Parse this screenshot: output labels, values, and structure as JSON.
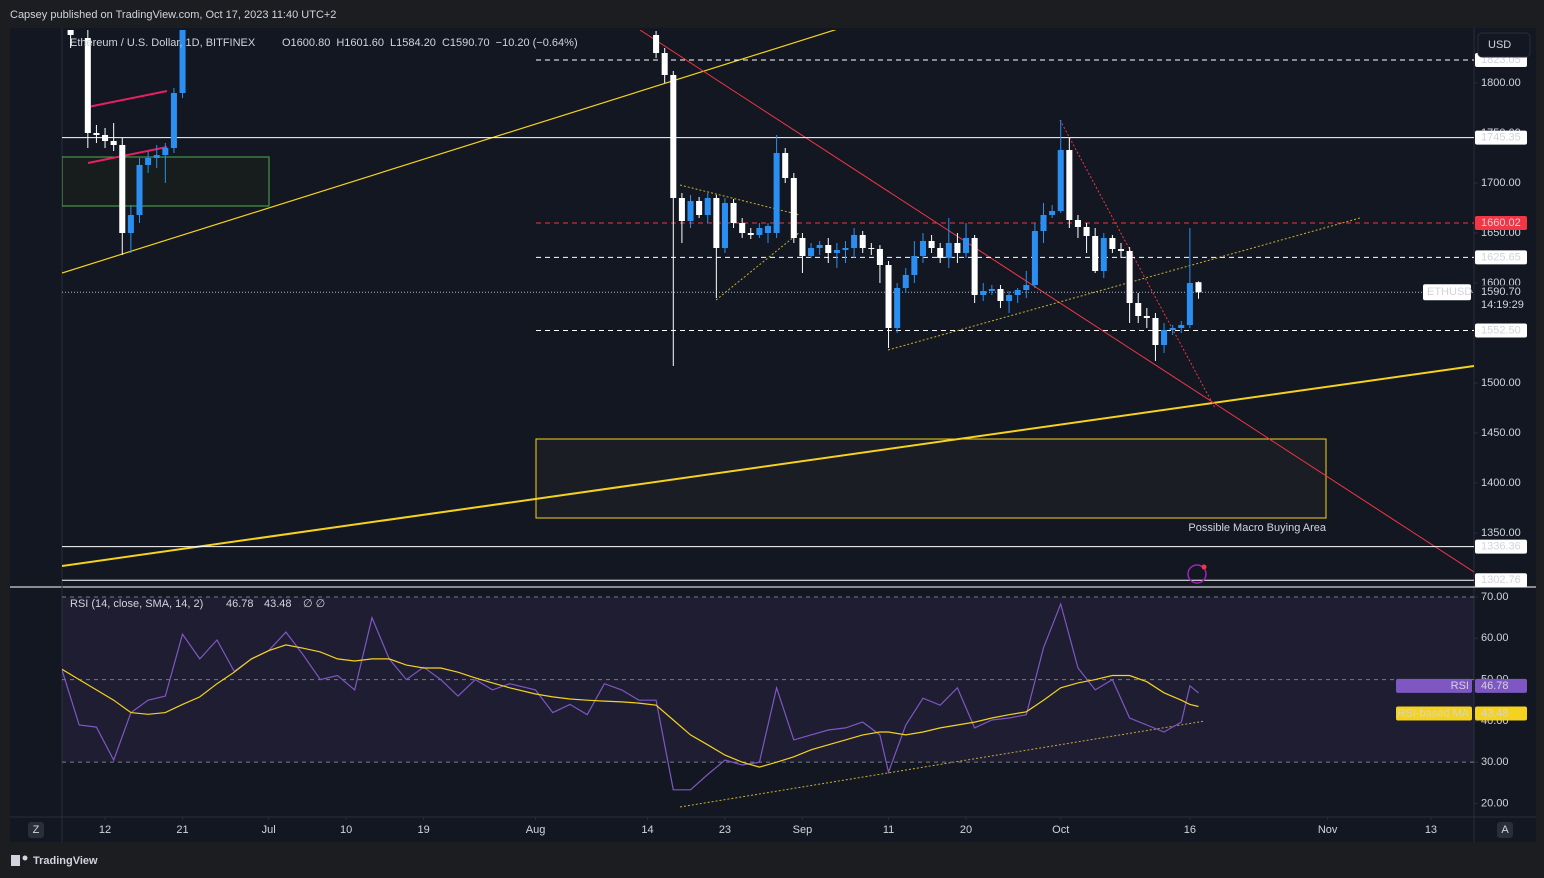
{
  "header": {
    "publisher": "Capsey published on TradingView.com, Oct 17, 2023 11:40 UTC+2"
  },
  "chart_data": [
    {
      "type": "candlestick",
      "title": "Ethereum / U.S. Dollar, 1D, BITFINEX",
      "ohlc_legend": [
        "O1600.80",
        "H1601.60",
        "L1584.20",
        "C1590.70",
        "−10.20 (−0.64%)"
      ],
      "currency": "USD",
      "symbol": "ETHUSD",
      "countdown": "14:19:29",
      "up_color": "#2a8ff0",
      "down_color": "#ffffff",
      "x": [
        "2023-06-08",
        "2023-06-10",
        "2023-06-11",
        "2023-06-12",
        "2023-06-13",
        "2023-06-14",
        "2023-06-15",
        "2023-06-16",
        "2023-06-17",
        "2023-06-18",
        "2023-06-19",
        "2023-06-20",
        "2023-06-21",
        "2023-08-15",
        "2023-08-16",
        "2023-08-17",
        "2023-08-18",
        "2023-08-19",
        "2023-08-20",
        "2023-08-21",
        "2023-08-22",
        "2023-08-23",
        "2023-08-24",
        "2023-08-25",
        "2023-08-26",
        "2023-08-27",
        "2023-08-28",
        "2023-08-29",
        "2023-08-30",
        "2023-08-31",
        "2023-09-01",
        "2023-09-02",
        "2023-09-03",
        "2023-09-04",
        "2023-09-05",
        "2023-09-06",
        "2023-09-07",
        "2023-09-08",
        "2023-09-09",
        "2023-09-10",
        "2023-09-11",
        "2023-09-12",
        "2023-09-13",
        "2023-09-14",
        "2023-09-15",
        "2023-09-16",
        "2023-09-17",
        "2023-09-18",
        "2023-09-19",
        "2023-09-20",
        "2023-09-21",
        "2023-09-22",
        "2023-09-23",
        "2023-09-24",
        "2023-09-25",
        "2023-09-26",
        "2023-09-27",
        "2023-09-28",
        "2023-09-29",
        "2023-09-30",
        "2023-10-01",
        "2023-10-02",
        "2023-10-03",
        "2023-10-04",
        "2023-10-05",
        "2023-10-06",
        "2023-10-07",
        "2023-10-08",
        "2023-10-09",
        "2023-10-10",
        "2023-10-11",
        "2023-10-12",
        "2023-10-13",
        "2023-10-14",
        "2023-10-15",
        "2023-10-16",
        "2023-10-17"
      ],
      "open": [
        1870,
        1845,
        1750,
        1748,
        1742,
        1738,
        1650,
        1668,
        1718,
        1725,
        1728,
        1735,
        1790,
        1848,
        1830,
        1808,
        1685,
        1662,
        1682,
        1668,
        1685,
        1635,
        1680,
        1660,
        1650,
        1648,
        1650,
        1650,
        1730,
        1705,
        1645,
        1627,
        1635,
        1638,
        1630,
        1633,
        1635,
        1648,
        1635,
        1634,
        1618,
        1555,
        1595,
        1608,
        1627,
        1642,
        1635,
        1625,
        1640,
        1630,
        1645,
        1588,
        1592,
        1594,
        1582,
        1588,
        1593,
        1598,
        1652,
        1668,
        1672,
        1733,
        1663,
        1656,
        1647,
        1612,
        1645,
        1634,
        1632,
        1580,
        1567,
        1565,
        1538,
        1553,
        1555,
        1558,
        1600.8
      ],
      "high": [
        1880,
        1855,
        1758,
        1755,
        1760,
        1745,
        1678,
        1725,
        1732,
        1738,
        1740,
        1795,
        1900,
        1852,
        1835,
        1812,
        1690,
        1688,
        1686,
        1690,
        1688,
        1685,
        1684,
        1665,
        1655,
        1660,
        1660,
        1748,
        1735,
        1710,
        1650,
        1640,
        1642,
        1645,
        1640,
        1642,
        1655,
        1652,
        1640,
        1638,
        1622,
        1600,
        1615,
        1642,
        1650,
        1648,
        1640,
        1665,
        1650,
        1660,
        1648,
        1600,
        1598,
        1598,
        1592,
        1595,
        1612,
        1660,
        1680,
        1678,
        1763,
        1745,
        1668,
        1660,
        1655,
        1650,
        1648,
        1640,
        1636,
        1590,
        1575,
        1570,
        1560,
        1558,
        1562,
        1655,
        1601.6
      ],
      "low": [
        1835,
        1735,
        1740,
        1735,
        1732,
        1628,
        1630,
        1660,
        1710,
        1715,
        1700,
        1730,
        1785,
        1825,
        1800,
        1517,
        1640,
        1655,
        1665,
        1660,
        1585,
        1630,
        1655,
        1645,
        1644,
        1645,
        1640,
        1645,
        1700,
        1640,
        1610,
        1625,
        1628,
        1620,
        1615,
        1620,
        1625,
        1630,
        1628,
        1600,
        1535,
        1550,
        1590,
        1600,
        1620,
        1630,
        1620,
        1615,
        1620,
        1625,
        1580,
        1582,
        1588,
        1575,
        1570,
        1580,
        1585,
        1595,
        1640,
        1665,
        1670,
        1655,
        1645,
        1630,
        1610,
        1605,
        1630,
        1625,
        1560,
        1560,
        1555,
        1522,
        1530,
        1548,
        1550,
        1555,
        1584.2
      ],
      "close": [
        1848,
        1750,
        1748,
        1742,
        1738,
        1650,
        1668,
        1718,
        1725,
        1728,
        1735,
        1790,
        1890,
        1830,
        1808,
        1685,
        1662,
        1682,
        1668,
        1685,
        1635,
        1680,
        1660,
        1650,
        1648,
        1655,
        1657,
        1730,
        1705,
        1645,
        1627,
        1635,
        1638,
        1630,
        1633,
        1635,
        1648,
        1635,
        1634,
        1618,
        1555,
        1595,
        1608,
        1627,
        1642,
        1635,
        1625,
        1640,
        1630,
        1645,
        1588,
        1592,
        1594,
        1582,
        1588,
        1593,
        1598,
        1652,
        1668,
        1672,
        1733,
        1663,
        1656,
        1647,
        1612,
        1645,
        1634,
        1632,
        1580,
        1567,
        1565,
        1538,
        1553,
        1555,
        1558,
        1600,
        1590.7
      ],
      "xlim": [
        "2023-06-07",
        "2023-11-18"
      ],
      "xticks": [
        {
          "value": "2023-06-12",
          "label": "12"
        },
        {
          "value": "2023-06-21",
          "label": "21"
        },
        {
          "value": "2023-07-01",
          "label": "Jul"
        },
        {
          "value": "2023-07-10",
          "label": "10"
        },
        {
          "value": "2023-07-19",
          "label": "19"
        },
        {
          "value": "2023-08-01",
          "label": "Aug"
        },
        {
          "value": "2023-08-14",
          "label": "14"
        },
        {
          "value": "2023-08-23",
          "label": "23"
        },
        {
          "value": "2023-09-01",
          "label": "Sep"
        },
        {
          "value": "2023-09-11",
          "label": "11"
        },
        {
          "value": "2023-09-20",
          "label": "20"
        },
        {
          "value": "2023-10-01",
          "label": "Oct"
        },
        {
          "value": "2023-10-16",
          "label": "16"
        },
        {
          "value": "2023-11-01",
          "label": "Nov"
        },
        {
          "value": "2023-11-13",
          "label": "13"
        }
      ],
      "ylim": [
        1298,
        1853
      ],
      "yticks": [
        {
          "value": 1350,
          "label": "1350.00"
        },
        {
          "value": 1400,
          "label": "1400.00"
        },
        {
          "value": 1450,
          "label": "1450.00"
        },
        {
          "value": 1500,
          "label": "1500.00"
        },
        {
          "value": 1550,
          "label": "1550.00"
        },
        {
          "value": 1600,
          "label": "1600.00"
        },
        {
          "value": 1650,
          "label": "1650.00"
        },
        {
          "value": 1700,
          "label": "1700.00"
        },
        {
          "value": 1750,
          "label": "1750.00"
        },
        {
          "value": 1800,
          "label": "1800.00"
        }
      ],
      "levels": [
        {
          "value": 1823.05,
          "label": "1823.05",
          "color": "#ffffff",
          "style": "dashed"
        },
        {
          "value": 1745.35,
          "label": "1745.35",
          "color": "#ffffff",
          "style": "solid"
        },
        {
          "value": 1660.02,
          "label": "1660.02",
          "color": "#f23645",
          "style": "dashed"
        },
        {
          "value": 1625.65,
          "label": "1625.65",
          "color": "#ffffff",
          "style": "dashed"
        },
        {
          "value": 1590.7,
          "label": "1590.70",
          "color": "#b2b5be",
          "style": "dotted"
        },
        {
          "value": 1552.5,
          "label": "1552.50",
          "color": "#ffffff",
          "style": "dashed"
        },
        {
          "value": 1336.36,
          "label": "1336.36",
          "color": "#ffffff",
          "style": "solid"
        },
        {
          "value": 1302.76,
          "label": "1302.76",
          "color": "#ffffff",
          "style": "solid"
        }
      ],
      "annotation": "Possible Macro Buying Area"
    },
    {
      "type": "line",
      "title": "RSI (14, close, SMA, 14, 2)",
      "flags": "∅ ∅",
      "x": [
        "2023-06-07",
        "2023-06-09",
        "2023-06-11",
        "2023-06-13",
        "2023-06-15",
        "2023-06-17",
        "2023-06-19",
        "2023-06-21",
        "2023-06-23",
        "2023-06-25",
        "2023-06-27",
        "2023-06-29",
        "2023-07-01",
        "2023-07-03",
        "2023-07-05",
        "2023-07-07",
        "2023-07-09",
        "2023-07-11",
        "2023-07-13",
        "2023-07-15",
        "2023-07-17",
        "2023-07-19",
        "2023-07-21",
        "2023-07-23",
        "2023-07-25",
        "2023-07-27",
        "2023-07-29",
        "2023-08-01",
        "2023-08-03",
        "2023-08-05",
        "2023-08-07",
        "2023-08-09",
        "2023-08-11",
        "2023-08-13",
        "2023-08-15",
        "2023-08-17",
        "2023-08-19",
        "2023-08-21",
        "2023-08-23",
        "2023-08-25",
        "2023-08-27",
        "2023-08-29",
        "2023-08-31",
        "2023-09-02",
        "2023-09-04",
        "2023-09-06",
        "2023-09-08",
        "2023-09-10",
        "2023-09-11",
        "2023-09-13",
        "2023-09-15",
        "2023-09-17",
        "2023-09-19",
        "2023-09-21",
        "2023-09-23",
        "2023-09-25",
        "2023-09-27",
        "2023-09-29",
        "2023-10-01",
        "2023-10-03",
        "2023-10-05",
        "2023-10-07",
        "2023-10-09",
        "2023-10-11",
        "2023-10-13",
        "2023-10-15",
        "2023-10-16",
        "2023-10-17"
      ],
      "series": [
        {
          "name": "RSI",
          "color": "#7e57c2",
          "values": [
            52.3,
            39,
            38.5,
            30.5,
            42,
            45,
            46,
            61,
            55,
            59.6,
            52,
            55,
            57,
            61.5,
            56,
            50,
            51,
            47.5,
            65,
            55,
            50,
            53,
            50,
            46,
            50,
            47.5,
            49,
            47.5,
            42,
            44,
            41.5,
            49,
            47.5,
            45,
            45,
            23.3,
            23.3,
            27,
            30.5,
            29.3,
            30,
            48,
            35.4,
            36.6,
            37.8,
            38.3,
            39.7,
            36.6,
            27.6,
            39,
            45.5,
            43.8,
            48,
            38.3,
            40.2,
            40.7,
            41.5,
            57.7,
            68.3,
            52.8,
            47.5,
            50,
            40.7,
            39,
            37.3,
            39.7,
            48.5,
            46.78
          ]
        },
        {
          "name": "RSI-based MA",
          "color": "#f5d21f",
          "values": [
            52.5,
            50,
            47.5,
            45,
            42,
            41.6,
            42,
            44,
            45.8,
            49,
            51.8,
            55,
            57,
            58.4,
            57.6,
            56.7,
            55,
            54.5,
            55,
            55,
            53.5,
            52.8,
            52.8,
            51.8,
            50.4,
            49.2,
            48,
            46.5,
            45.8,
            45.3,
            45,
            44.8,
            44.6,
            44.3,
            43.8,
            40.2,
            36.6,
            34.2,
            31.7,
            30,
            28.8,
            30,
            31.3,
            33,
            34.2,
            35.4,
            36.6,
            37.3,
            37.3,
            36.6,
            37.3,
            38.3,
            39,
            39.7,
            40.7,
            41.5,
            42.2,
            45,
            48,
            49.2,
            50,
            51,
            51,
            49.5,
            46.8,
            45,
            44,
            43.48
          ]
        }
      ],
      "ylim": [
        17.2,
        71.7
      ],
      "yticks": [
        {
          "value": 20,
          "label": "20.00"
        },
        {
          "value": 30,
          "label": "30.00"
        },
        {
          "value": 40,
          "label": "40.00"
        },
        {
          "value": 50,
          "label": "50.00"
        },
        {
          "value": 60,
          "label": "60.00"
        },
        {
          "value": 70,
          "label": "70.00"
        }
      ],
      "bands": [
        30,
        50,
        70
      ]
    }
  ],
  "footer": {
    "brand": "TradingView",
    "left_button": "Z",
    "right_button": "A"
  }
}
